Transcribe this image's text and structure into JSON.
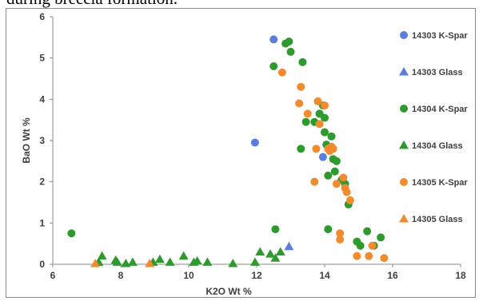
{
  "caption": "during breccia formation.",
  "chart_data": {
    "type": "scatter",
    "xlabel": "K2O Wt %",
    "ylabel": "BaO Wt %",
    "xlim": [
      6,
      18
    ],
    "ylim": [
      0,
      6
    ],
    "xticks": [
      "6",
      "8",
      "10",
      "12",
      "14",
      "16",
      "18"
    ],
    "yticks": [
      "0",
      "1",
      "2",
      "3",
      "4",
      "5",
      "6"
    ],
    "grid": false,
    "legend_position": "right",
    "series": [
      {
        "name": "14303 K-Spar",
        "color": "#5b7ddc",
        "marker": "circle",
        "points": [
          [
            12.5,
            5.45
          ],
          [
            11.95,
            2.95
          ],
          [
            13.85,
            3.65
          ],
          [
            13.95,
            2.6
          ]
        ]
      },
      {
        "name": "14303 Glass",
        "color": "#5b7ddc",
        "marker": "triangle",
        "points": [
          [
            12.95,
            0.43
          ]
        ]
      },
      {
        "name": "14304 K-Spar",
        "color": "#2e9a2e",
        "marker": "circle",
        "points": [
          [
            6.55,
            0.75
          ],
          [
            12.5,
            4.8
          ],
          [
            12.55,
            0.85
          ],
          [
            12.85,
            5.35
          ],
          [
            12.95,
            5.4
          ],
          [
            13.0,
            5.15
          ],
          [
            13.3,
            2.8
          ],
          [
            13.35,
            4.9
          ],
          [
            13.45,
            3.45
          ],
          [
            13.7,
            3.45
          ],
          [
            13.85,
            3.65
          ],
          [
            13.95,
            3.85
          ],
          [
            14.0,
            3.55
          ],
          [
            14.0,
            3.2
          ],
          [
            14.05,
            2.9
          ],
          [
            14.1,
            2.15
          ],
          [
            14.1,
            0.85
          ],
          [
            14.15,
            2.75
          ],
          [
            14.2,
            3.1
          ],
          [
            14.25,
            2.55
          ],
          [
            14.3,
            2.25
          ],
          [
            14.35,
            2.5
          ],
          [
            14.5,
            2.05
          ],
          [
            14.6,
            1.95
          ],
          [
            14.7,
            1.45
          ],
          [
            14.95,
            0.55
          ],
          [
            15.05,
            0.45
          ],
          [
            15.25,
            0.8
          ],
          [
            15.45,
            0.45
          ],
          [
            15.65,
            0.65
          ]
        ]
      },
      {
        "name": "14304 Glass",
        "color": "#2e9a2e",
        "marker": "triangle",
        "points": [
          [
            7.35,
            0.05
          ],
          [
            7.45,
            0.2
          ],
          [
            7.85,
            0.1
          ],
          [
            7.9,
            0.05
          ],
          [
            8.15,
            0.02
          ],
          [
            8.35,
            0.05
          ],
          [
            8.95,
            0.05
          ],
          [
            9.15,
            0.12
          ],
          [
            9.45,
            0.05
          ],
          [
            9.85,
            0.2
          ],
          [
            10.15,
            0.05
          ],
          [
            10.25,
            0.08
          ],
          [
            10.55,
            0.05
          ],
          [
            11.3,
            0.02
          ],
          [
            11.95,
            0.05
          ],
          [
            12.1,
            0.3
          ],
          [
            12.4,
            0.25
          ],
          [
            12.55,
            0.15
          ],
          [
            12.7,
            0.3
          ]
        ]
      },
      {
        "name": "14305 K-Spar",
        "color": "#f28a2e",
        "marker": "circle",
        "points": [
          [
            12.75,
            4.65
          ],
          [
            13.25,
            3.9
          ],
          [
            13.3,
            4.3
          ],
          [
            13.5,
            3.65
          ],
          [
            13.7,
            2.0
          ],
          [
            13.75,
            2.8
          ],
          [
            13.8,
            3.95
          ],
          [
            13.85,
            3.4
          ],
          [
            14.0,
            3.85
          ],
          [
            14.1,
            2.8
          ],
          [
            14.15,
            2.75
          ],
          [
            14.2,
            2.85
          ],
          [
            14.25,
            2.8
          ],
          [
            14.35,
            1.95
          ],
          [
            14.45,
            0.75
          ],
          [
            14.45,
            0.6
          ],
          [
            14.55,
            2.1
          ],
          [
            14.6,
            1.85
          ],
          [
            14.65,
            1.75
          ],
          [
            14.75,
            1.55
          ],
          [
            14.95,
            0.2
          ],
          [
            15.3,
            0.2
          ],
          [
            15.4,
            0.45
          ],
          [
            15.75,
            0.15
          ]
        ]
      },
      {
        "name": "14305 Glass",
        "color": "#f28a2e",
        "marker": "triangle",
        "points": [
          [
            7.25,
            0.02
          ],
          [
            8.85,
            0.02
          ]
        ]
      }
    ]
  }
}
